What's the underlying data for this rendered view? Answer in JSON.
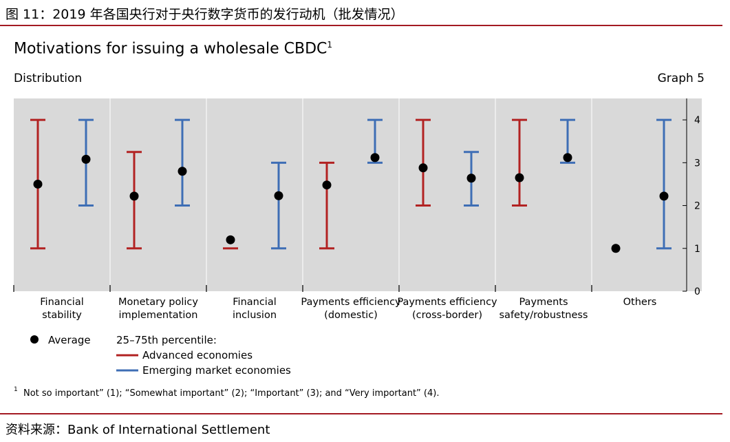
{
  "figure_title": "图 11：2019 年各国央行对于央行数字货币的发行动机（批发情况）",
  "source": "资料来源：Bank of International Settlement",
  "chart_data": {
    "type": "error-bar",
    "title": "Motivations for issuing a wholesale CBDC",
    "title_superscript": "1",
    "subtitle": "Distribution",
    "graph_label": "Graph 5",
    "ylim": [
      0,
      4.5
    ],
    "yticks": [
      0,
      1,
      2,
      3,
      4
    ],
    "categories": [
      [
        "Financial",
        "stability"
      ],
      [
        "Monetary policy",
        "implementation"
      ],
      [
        "Financial",
        "inclusion"
      ],
      [
        "Payments efficiency",
        "(domestic)"
      ],
      [
        "Payments efficiency",
        "(cross-border)"
      ],
      [
        "Payments",
        "safety/robustness"
      ],
      [
        "Others"
      ]
    ],
    "series": [
      {
        "name": "Advanced economies",
        "color": "#b22222",
        "low": [
          1,
          1,
          1,
          1,
          2,
          2,
          null
        ],
        "high": [
          4,
          3.25,
          1,
          3,
          4,
          4,
          null
        ],
        "average": [
          2.5,
          2.22,
          1.2,
          2.48,
          2.88,
          2.65,
          1
        ]
      },
      {
        "name": "Emerging market economies",
        "color": "#3e6eb5",
        "low": [
          2,
          2,
          1,
          3,
          2,
          3,
          1
        ],
        "high": [
          4,
          4,
          3,
          4,
          3.25,
          4,
          4
        ],
        "average": [
          3.08,
          2.8,
          2.23,
          3.12,
          2.64,
          3.12,
          2.22
        ]
      }
    ],
    "legend": {
      "average_label": "Average",
      "percentile_label": "25–75th percentile:",
      "advanced_label": "Advanced economies",
      "emerging_label": "Emerging market economies"
    },
    "footnote_marker": "1",
    "footnote": "Not so important” (1); “Somewhat important” (2); “Important” (3); and “Very important” (4)."
  }
}
